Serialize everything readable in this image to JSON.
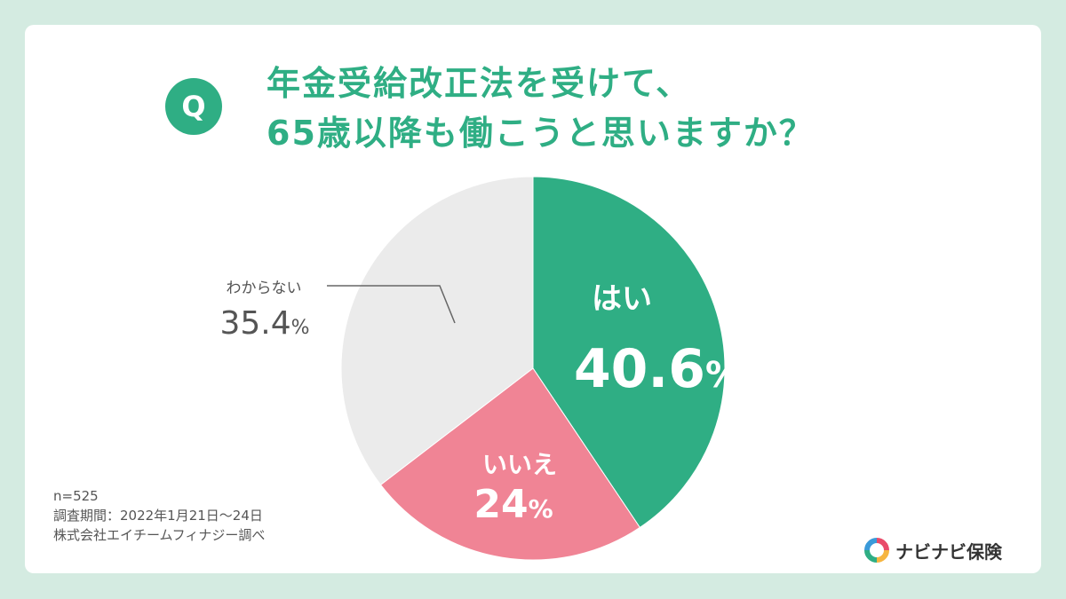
{
  "question": {
    "badge": "Q",
    "line1": "年金受給改正法を受けて、",
    "line2": "65歳以降も働こうと思いますか？"
  },
  "chart_data": {
    "type": "pie",
    "slices": [
      {
        "label": "はい",
        "value": 40.6,
        "display": "40.6",
        "unit": "%",
        "color": "#2fae84"
      },
      {
        "label": "いいえ",
        "value": 24,
        "display": "24",
        "unit": "%",
        "color": "#f08495"
      },
      {
        "label": "わからない",
        "value": 35.4,
        "display": "35.4",
        "unit": "%",
        "color": "#ebebeb"
      }
    ]
  },
  "notes": {
    "n": "n=525",
    "period": "調査期間：2022年1月21日〜24日",
    "source": "株式会社エイチームフィナジー調べ"
  },
  "brand": {
    "name": "ナビナビ保険",
    "colors": [
      "#e94b6a",
      "#f6b540",
      "#2fae84",
      "#3a9ad9"
    ]
  }
}
